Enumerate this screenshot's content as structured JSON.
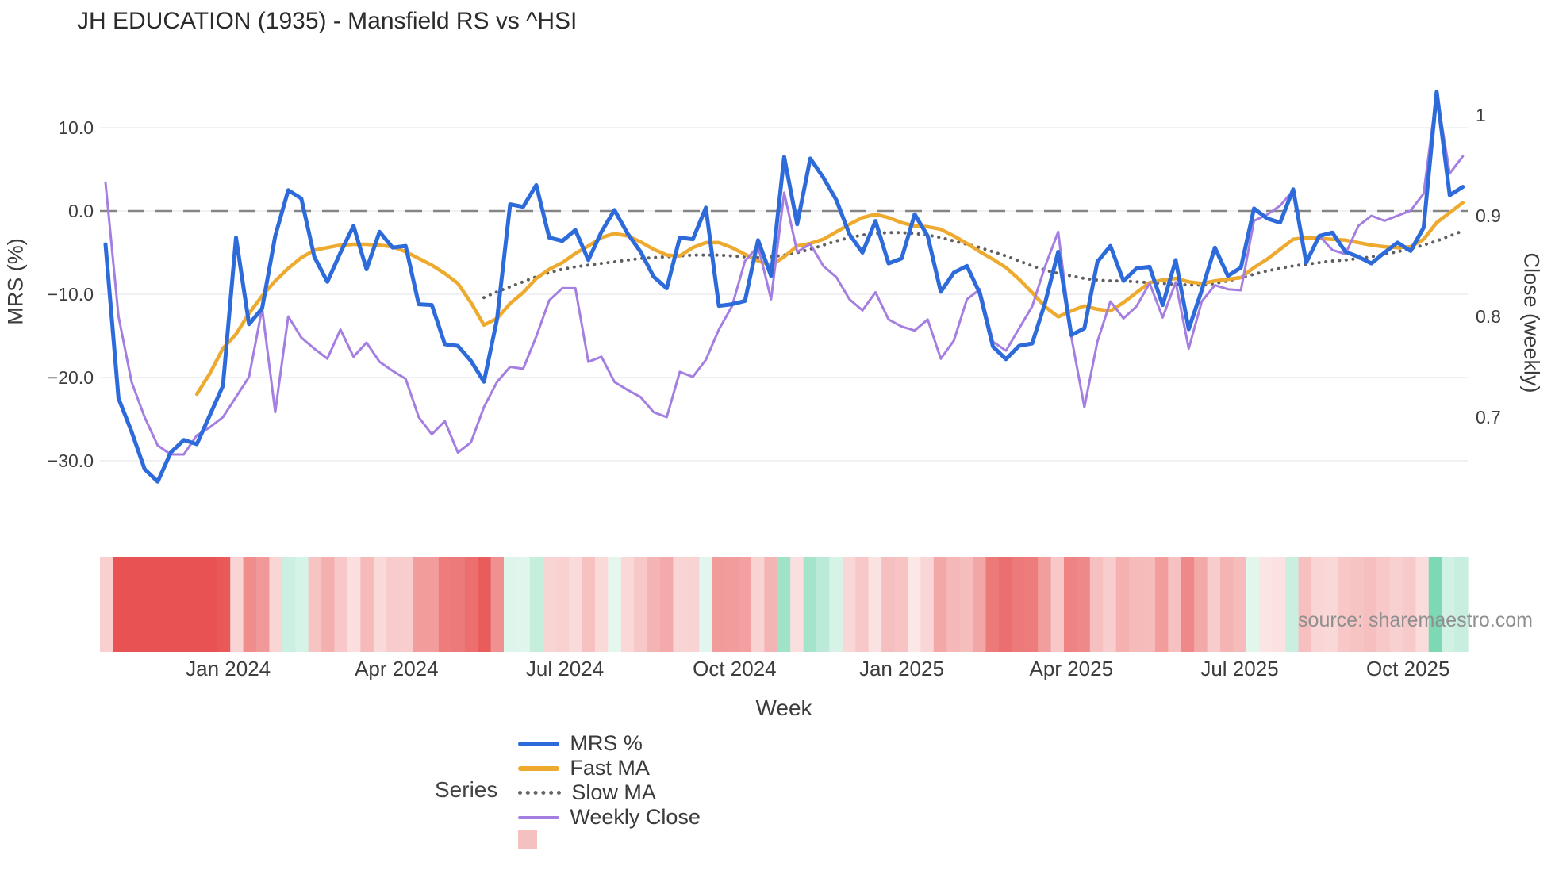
{
  "title": "JH EDUCATION (1935) - Mansfield RS vs ^HSI",
  "source_note": "source: sharemaestro.com",
  "axes": {
    "left_title": "MRS (%)",
    "right_title": "Close (weekly)",
    "x_title": "Week"
  },
  "legend": {
    "title": "Series",
    "items": [
      {
        "id": "mrs-percent",
        "label": "MRS %",
        "color": "#2d6bdb",
        "style": "line"
      },
      {
        "id": "fast-ma",
        "label": "Fast MA",
        "color": "#edaa2f",
        "style": "line"
      },
      {
        "id": "slow-ma",
        "label": "Slow MA",
        "color": "#666666",
        "style": "dotted"
      },
      {
        "id": "weekly-close",
        "label": "Weekly Close",
        "color": "#a47ee0",
        "style": "thinline"
      },
      {
        "id": "heat-strip",
        "label": "",
        "color": "#f5c0c0",
        "style": "square"
      }
    ]
  },
  "chart_data": {
    "type": "line",
    "title": "JH EDUCATION (1935) - Mansfield RS vs ^HSI",
    "n_weeks": 105,
    "x_axis": {
      "label": "Week",
      "tick_labels": [
        "Jan 2024",
        "Apr 2024",
        "Jul 2024",
        "Oct 2024",
        "Jan 2025",
        "Apr 2025",
        "Jul 2025",
        "Oct 2025"
      ],
      "tick_weeks": [
        9.4,
        22.3,
        35.2,
        48.2,
        61.0,
        74.0,
        86.9,
        99.8
      ]
    },
    "y_left": {
      "label": "MRS (%)",
      "tick_values": [
        10,
        0,
        -10,
        -20,
        -30
      ],
      "tick_labels": [
        "10.0",
        "0.0",
        "−10.0",
        "−20.0",
        "−30.0"
      ],
      "zero_reference_line": 0,
      "range_approx": [
        -35,
        17
      ]
    },
    "y_right": {
      "label": "Close (weekly)",
      "tick_values": [
        1,
        0.9,
        0.8,
        0.7
      ],
      "tick_labels": [
        "1",
        "0.9",
        "0.8",
        "0.7"
      ],
      "range_approx": [
        0.63,
        1.03
      ]
    },
    "grid": true,
    "legend_position": "bottom",
    "series": [
      {
        "name": "MRS %",
        "axis": "left",
        "color": "#2d6bdb",
        "width": 5,
        "style": "solid",
        "values": [
          -4.0,
          -22.5,
          -26.5,
          -31.0,
          -32.5,
          -29.0,
          -27.5,
          -28.0,
          -24.5,
          -21.0,
          -3.2,
          -13.6,
          -11.7,
          -3.0,
          2.5,
          1.5,
          -5.5,
          -8.5,
          -5.0,
          -1.8,
          -7.0,
          -2.5,
          -4.4,
          -4.2,
          -11.2,
          -11.3,
          -16.0,
          -16.2,
          -18.0,
          -20.5,
          -13.0,
          0.8,
          0.5,
          3.1,
          -3.2,
          -3.6,
          -2.3,
          -5.9,
          -2.5,
          0.1,
          -2.7,
          -4.9,
          -7.9,
          -9.3,
          -3.2,
          -3.4,
          0.4,
          -11.4,
          -11.2,
          -10.8,
          -3.5,
          -7.8,
          6.5,
          -1.6,
          6.3,
          4.0,
          1.3,
          -2.8,
          -5.0,
          -1.2,
          -6.3,
          -5.7,
          -0.4,
          -3.0,
          -9.7,
          -7.4,
          -6.6,
          -9.9,
          -16.3,
          -17.8,
          -16.2,
          -15.9,
          -11.0,
          -4.9,
          -14.9,
          -14.1,
          -6.1,
          -4.2,
          -8.4,
          -6.9,
          -6.7,
          -11.3,
          -5.9,
          -14.2,
          -9.5,
          -4.4,
          -7.8,
          -6.8,
          0.3,
          -0.9,
          -1.4,
          2.6,
          -6.2,
          -3.0,
          -2.6,
          -4.9,
          -5.5,
          -6.3,
          -5.0,
          -3.8,
          -4.8,
          -2.0,
          14.3,
          1.9,
          2.9
        ]
      },
      {
        "name": "Fast MA",
        "axis": "left",
        "color": "#edaa2f",
        "width": 4.5,
        "style": "solid",
        "values": [
          null,
          null,
          null,
          null,
          null,
          null,
          null,
          -22.0,
          -19.5,
          -16.5,
          -14.8,
          -12.3,
          -10.2,
          -8.4,
          -6.9,
          -5.6,
          -4.7,
          -4.4,
          -4.1,
          -4.0,
          -4.0,
          -4.1,
          -4.3,
          -4.9,
          -5.7,
          -6.5,
          -7.5,
          -8.7,
          -11.0,
          -13.7,
          -12.9,
          -11.1,
          -9.8,
          -8.1,
          -7.0,
          -6.2,
          -5.1,
          -4.2,
          -3.2,
          -2.7,
          -3.0,
          -3.7,
          -4.6,
          -5.3,
          -5.4,
          -4.4,
          -3.8,
          -3.8,
          -4.4,
          -5.2,
          -6.0,
          -6.5,
          -5.5,
          -4.2,
          -3.9,
          -3.4,
          -2.5,
          -1.6,
          -0.8,
          -0.4,
          -0.8,
          -1.4,
          -1.8,
          -1.9,
          -2.2,
          -3.0,
          -3.9,
          -4.9,
          -5.8,
          -6.8,
          -8.2,
          -9.8,
          -11.5,
          -12.7,
          -12.0,
          -11.4,
          -11.8,
          -12.0,
          -11.0,
          -9.8,
          -8.6,
          -8.3,
          -8.1,
          -8.5,
          -8.7,
          -8.4,
          -8.2,
          -8.0,
          -6.8,
          -5.8,
          -4.6,
          -3.4,
          -3.2,
          -3.3,
          -3.4,
          -3.5,
          -3.8,
          -4.1,
          -4.3,
          -4.4,
          -4.3,
          -3.4,
          -1.4,
          -0.2,
          1.0
        ]
      },
      {
        "name": "Slow MA",
        "axis": "left",
        "color": "#5f5f5f",
        "width": 4,
        "style": "dotted",
        "values": [
          null,
          null,
          null,
          null,
          null,
          null,
          null,
          null,
          null,
          null,
          null,
          null,
          null,
          null,
          null,
          null,
          null,
          null,
          null,
          null,
          null,
          null,
          null,
          null,
          null,
          null,
          null,
          null,
          null,
          -10.4,
          -9.7,
          -9.1,
          -8.5,
          -7.9,
          -7.4,
          -7.0,
          -6.7,
          -6.5,
          -6.3,
          -6.1,
          -5.9,
          -5.7,
          -5.6,
          -5.5,
          -5.4,
          -5.3,
          -5.3,
          -5.3,
          -5.4,
          -5.5,
          -5.6,
          -5.5,
          -5.3,
          -5.0,
          -4.6,
          -4.1,
          -3.6,
          -3.2,
          -2.9,
          -2.7,
          -2.6,
          -2.6,
          -2.7,
          -2.9,
          -3.2,
          -3.6,
          -4.0,
          -4.4,
          -4.9,
          -5.4,
          -6.0,
          -6.6,
          -7.1,
          -7.5,
          -7.8,
          -8.1,
          -8.3,
          -8.4,
          -8.4,
          -8.5,
          -8.6,
          -8.7,
          -8.8,
          -8.9,
          -8.9,
          -8.7,
          -8.4,
          -8.0,
          -7.6,
          -7.2,
          -6.9,
          -6.6,
          -6.4,
          -6.2,
          -6.0,
          -5.9,
          -5.7,
          -5.5,
          -5.2,
          -4.9,
          -4.5,
          -4.1,
          -3.6,
          -3.0,
          -2.4
        ]
      },
      {
        "name": "Weekly Close",
        "axis": "right",
        "color": "#a47ee0",
        "width": 3,
        "style": "solid",
        "values": [
          0.933,
          0.8,
          0.735,
          0.7,
          0.672,
          0.663,
          0.663,
          0.682,
          0.69,
          0.7,
          0.72,
          0.74,
          0.808,
          0.705,
          0.8,
          0.779,
          0.768,
          0.758,
          0.787,
          0.76,
          0.774,
          0.755,
          0.746,
          0.738,
          0.7,
          0.683,
          0.696,
          0.665,
          0.675,
          0.71,
          0.735,
          0.75,
          0.748,
          0.78,
          0.816,
          0.828,
          0.828,
          0.755,
          0.76,
          0.735,
          0.727,
          0.72,
          0.705,
          0.7,
          0.745,
          0.74,
          0.757,
          0.787,
          0.81,
          0.855,
          0.87,
          0.817,
          0.923,
          0.864,
          0.872,
          0.85,
          0.839,
          0.817,
          0.806,
          0.824,
          0.797,
          0.79,
          0.786,
          0.797,
          0.758,
          0.776,
          0.817,
          0.827,
          0.775,
          0.766,
          0.788,
          0.81,
          0.85,
          0.884,
          0.78,
          0.71,
          0.775,
          0.815,
          0.798,
          0.81,
          0.833,
          0.799,
          0.834,
          0.768,
          0.815,
          0.831,
          0.827,
          0.826,
          0.895,
          0.901,
          0.91,
          0.925,
          0.855,
          0.88,
          0.866,
          0.862,
          0.89,
          0.9,
          0.895,
          0.9,
          0.905,
          0.922,
          1.022,
          0.942,
          0.959
        ]
      }
    ],
    "heat_strip": {
      "description": "weekly band colored by MRS % value: red = negative, green = positive",
      "source_series": "MRS %",
      "negative_color": "#e85252",
      "positive_color": "#7dd8b4"
    },
    "colors": {
      "grid": "#ebecf2",
      "zero_line": "#848484",
      "tick_text": "#3c3c3c"
    }
  }
}
